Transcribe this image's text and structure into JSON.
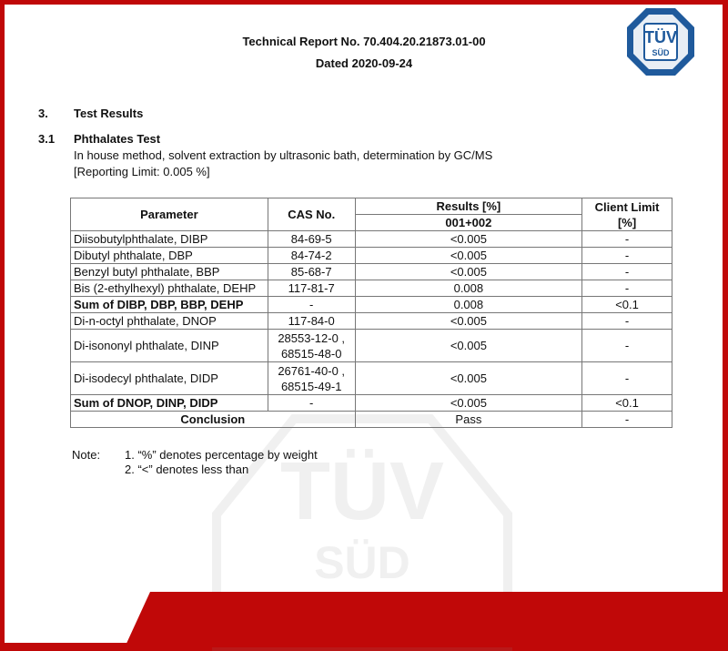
{
  "header": {
    "title": "Technical Report No. 70.404.20.21873.01-00",
    "dated": "Dated 2020-09-24",
    "logo_text": [
      "TÜV",
      "SÜD"
    ]
  },
  "section": {
    "number": "3.",
    "title": "Test Results"
  },
  "subsection": {
    "number": "3.1",
    "title": "Phthalates Test",
    "method": "In house method, solvent extraction by ultrasonic bath, determination by GC/MS",
    "limit": "[Reporting Limit: 0.005 %]"
  },
  "table": {
    "headers": {
      "parameter": "Parameter",
      "cas": "CAS No.",
      "results": "Results [%]",
      "sample": "001+002",
      "client_limit": "Client Limit [%]"
    },
    "rows": [
      {
        "parameter": "Diisobutylphthalate, DIBP",
        "cas": [
          "84-69-5"
        ],
        "result": "<0.005",
        "limit": "-",
        "bold": false
      },
      {
        "parameter": "Dibutyl phthalate, DBP",
        "cas": [
          "84-74-2"
        ],
        "result": "<0.005",
        "limit": "-",
        "bold": false
      },
      {
        "parameter": "Benzyl butyl phthalate, BBP",
        "cas": [
          "85-68-7"
        ],
        "result": "<0.005",
        "limit": "-",
        "bold": false
      },
      {
        "parameter": "Bis (2-ethylhexyl) phthalate, DEHP",
        "cas": [
          "117-81-7"
        ],
        "result": "0.008",
        "limit": "-",
        "bold": false
      },
      {
        "parameter": "Sum of DIBP, DBP, BBP, DEHP",
        "cas": [
          "-"
        ],
        "result": "0.008",
        "limit": "<0.1",
        "bold": true
      },
      {
        "parameter": "Di-n-octyl phthalate, DNOP",
        "cas": [
          "117-84-0"
        ],
        "result": "<0.005",
        "limit": "-",
        "bold": false
      },
      {
        "parameter": "Di-isononyl phthalate, DINP",
        "cas": [
          "28553-12-0 ,",
          "68515-48-0"
        ],
        "result": "<0.005",
        "limit": "-",
        "bold": false
      },
      {
        "parameter": "Di-isodecyl phthalate, DIDP",
        "cas": [
          "26761-40-0 ,",
          "68515-49-1"
        ],
        "result": "<0.005",
        "limit": "-",
        "bold": false
      },
      {
        "parameter": "Sum of DNOP, DINP, DIDP",
        "cas": [
          "-"
        ],
        "result": "<0.005",
        "limit": "<0.1",
        "bold": true
      }
    ],
    "conclusion": {
      "label": "Conclusion",
      "result": "Pass",
      "limit": "-"
    }
  },
  "notes": {
    "label": "Note:",
    "items": [
      "1. “%” denotes percentage by weight",
      "2. “<” denotes less than"
    ]
  },
  "colors": {
    "brand_red": "#c00808",
    "logo_blue": "#1f5a9c"
  }
}
